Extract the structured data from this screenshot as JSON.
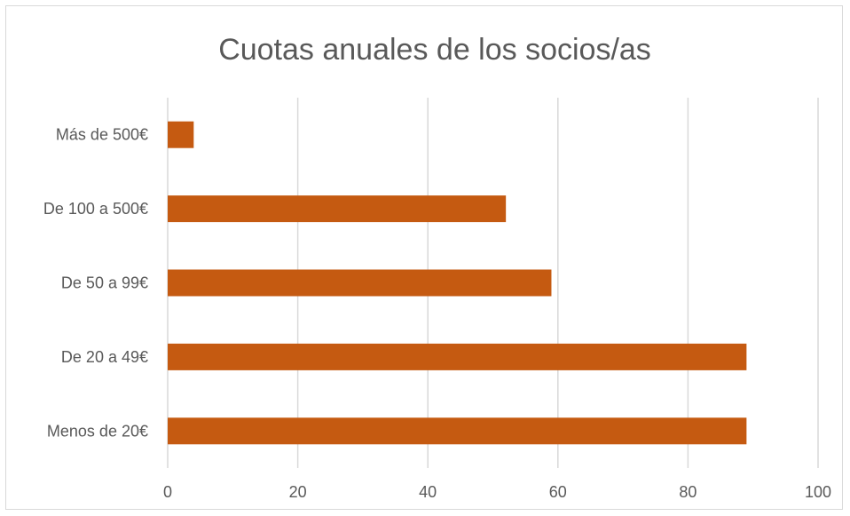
{
  "chart_data": {
    "type": "bar",
    "orientation": "horizontal",
    "title": "Cuotas anuales de los socios/as",
    "xlabel": "",
    "ylabel": "",
    "categories": [
      "Menos de 20€",
      "De 20 a 49€",
      "De 50 a 99€",
      "De 100 a 500€",
      "Más de 500€"
    ],
    "values": [
      89,
      89,
      59,
      52,
      4
    ],
    "xlim": [
      0,
      100
    ],
    "xticks": [
      0,
      20,
      40,
      60,
      80,
      100
    ],
    "grid": true,
    "legend": "none",
    "bar_color": "#c55a11"
  }
}
